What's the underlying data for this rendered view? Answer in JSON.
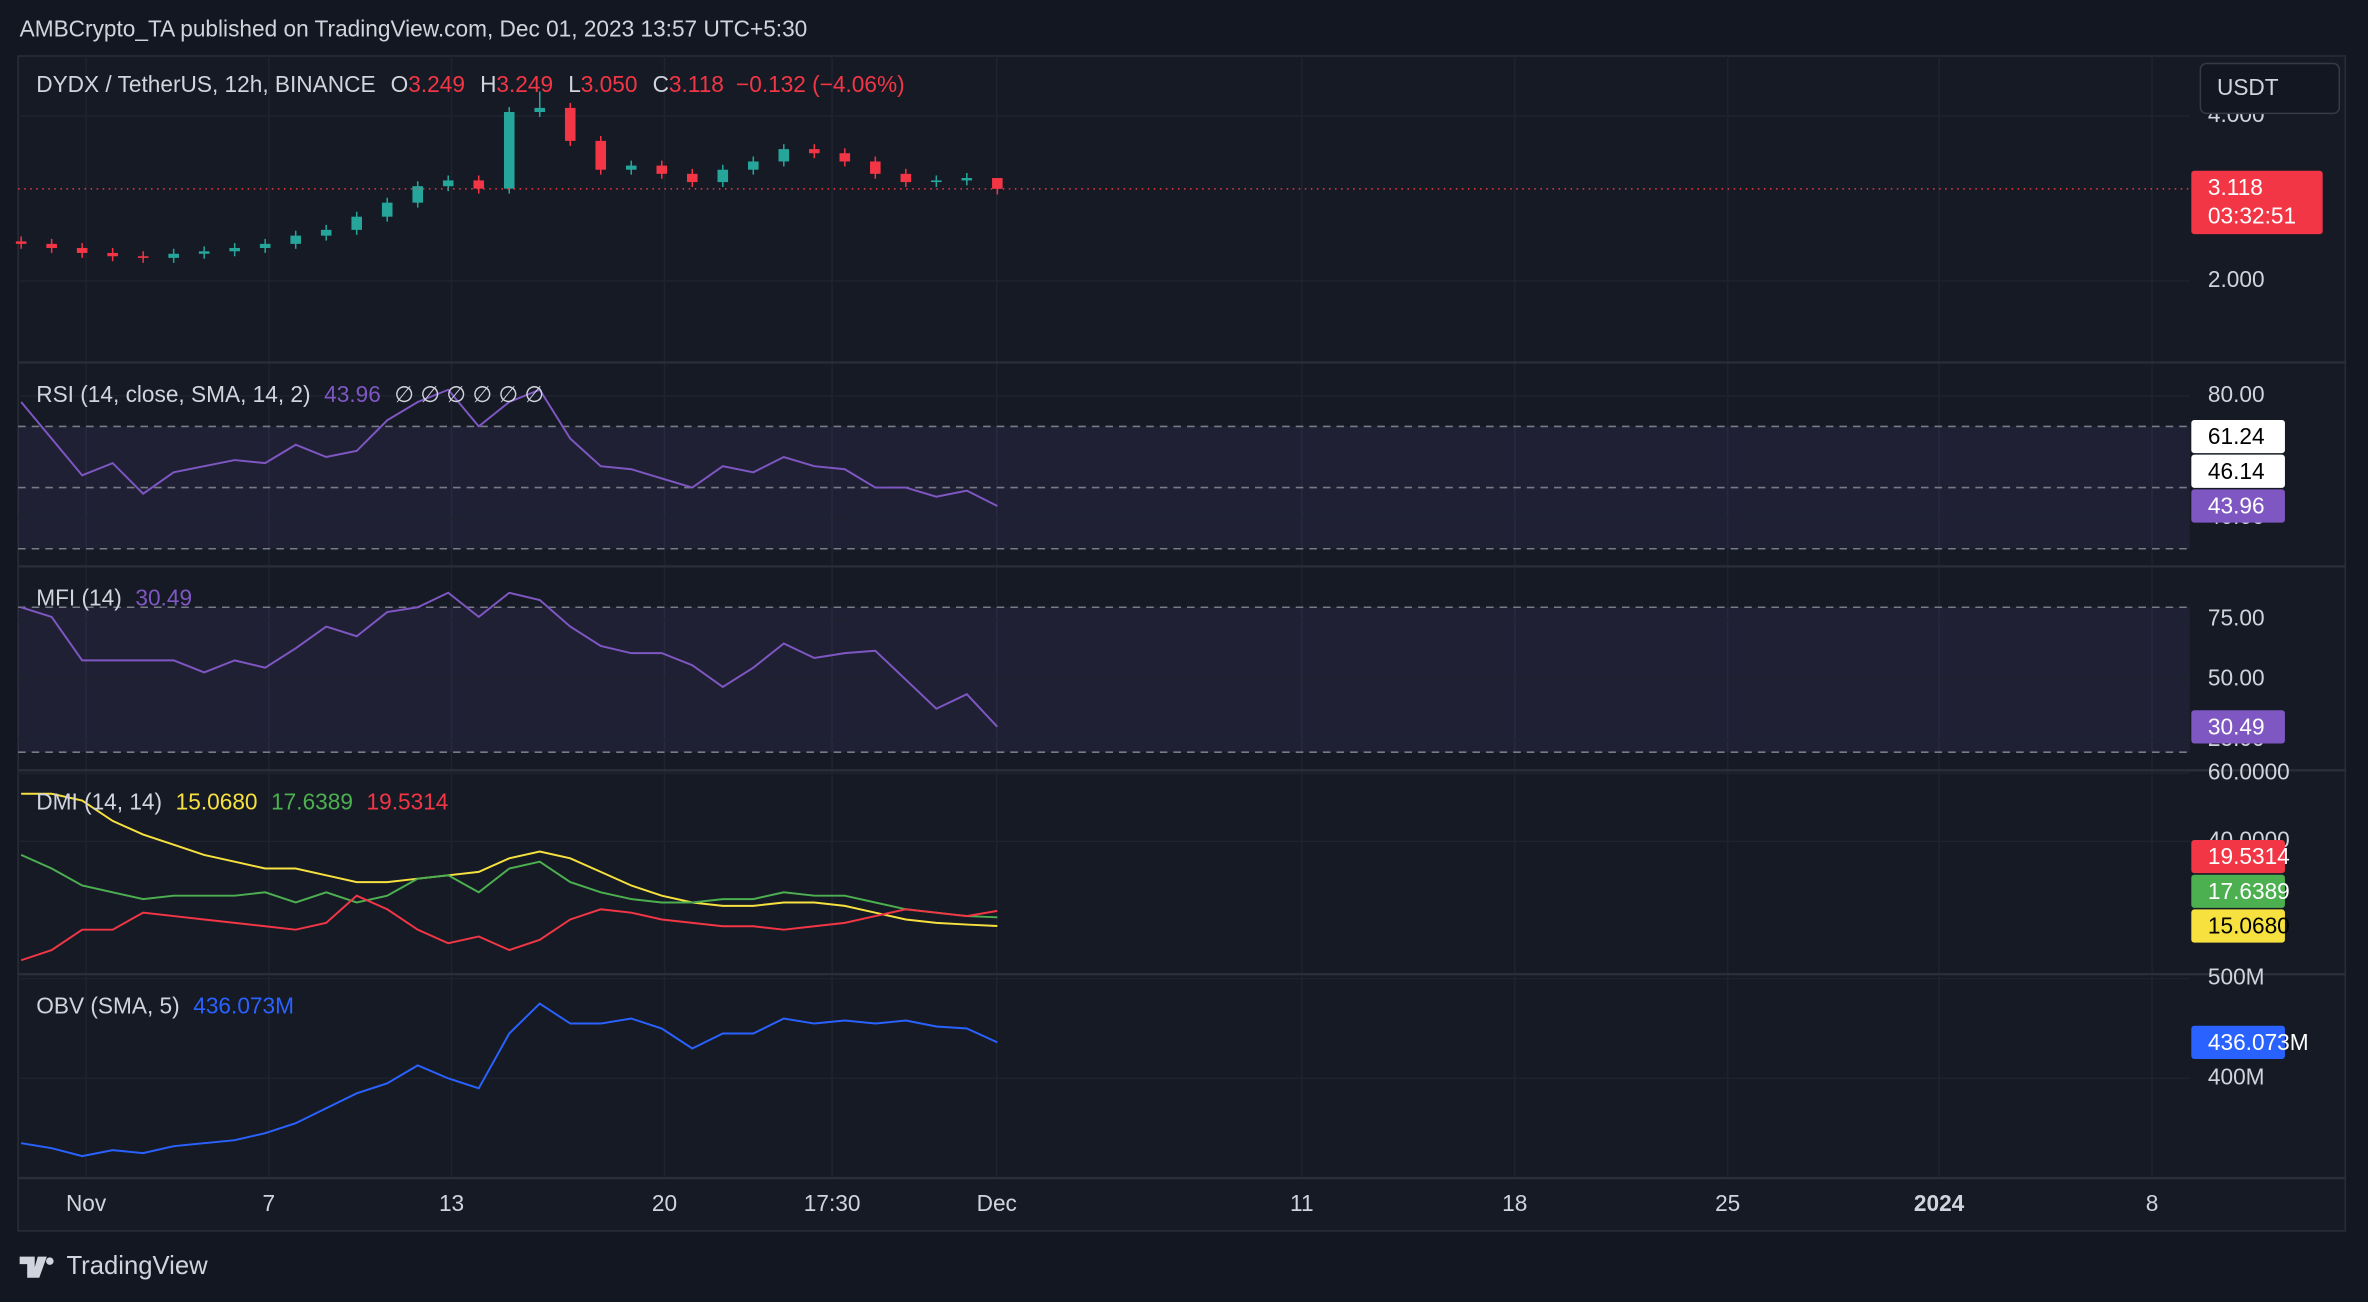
{
  "header": {
    "published": "AMBCrypto_TA published on TradingView.com, Dec 01, 2023 13:57 UTC+5:30"
  },
  "currency_button": "USDT",
  "time_axis": [
    "Nov",
    "7",
    "13",
    "20",
    "17:30",
    "Dec",
    "11",
    "18",
    "25",
    "2024",
    "8"
  ],
  "footer": "TradingView",
  "panes": [
    {
      "type": "candlestick",
      "legend": {
        "symbol": "DYDX / TetherUS, 12h, BINANCE",
        "open_label": "O",
        "open": "3.249",
        "high_label": "H",
        "high": "3.249",
        "low_label": "L",
        "low": "3.050",
        "close_label": "C",
        "close": "3.118",
        "change": "−0.132 (−4.06%)"
      },
      "open": [
        2.48,
        2.45,
        2.4,
        2.34,
        2.3,
        2.28,
        2.33,
        2.36,
        2.4,
        2.45,
        2.55,
        2.62,
        2.78,
        2.95,
        3.15,
        3.22,
        3.12,
        4.05,
        4.1,
        3.7,
        3.35,
        3.4,
        3.3,
        3.2,
        3.35,
        3.45,
        3.6,
        3.55,
        3.45,
        3.3,
        3.2,
        3.22,
        3.249
      ],
      "high": [
        2.54,
        2.51,
        2.46,
        2.4,
        2.36,
        2.39,
        2.42,
        2.46,
        2.51,
        2.61,
        2.68,
        2.84,
        3.01,
        3.21,
        3.28,
        3.28,
        4.11,
        4.3,
        4.16,
        3.76,
        3.46,
        3.46,
        3.36,
        3.41,
        3.51,
        3.66,
        3.66,
        3.61,
        3.51,
        3.36,
        3.28,
        3.31,
        3.249
      ],
      "low": [
        2.39,
        2.34,
        2.28,
        2.24,
        2.22,
        2.22,
        2.27,
        2.3,
        2.34,
        2.39,
        2.49,
        2.56,
        2.72,
        2.89,
        3.09,
        3.06,
        3.06,
        3.99,
        3.64,
        3.29,
        3.29,
        3.24,
        3.14,
        3.14,
        3.29,
        3.39,
        3.49,
        3.39,
        3.24,
        3.14,
        3.14,
        3.16,
        3.05
      ],
      "close": [
        2.45,
        2.4,
        2.34,
        2.3,
        2.28,
        2.33,
        2.36,
        2.4,
        2.45,
        2.55,
        2.62,
        2.78,
        2.95,
        3.15,
        3.22,
        3.12,
        4.05,
        4.1,
        3.7,
        3.35,
        3.4,
        3.3,
        3.2,
        3.35,
        3.45,
        3.6,
        3.55,
        3.45,
        3.3,
        3.2,
        3.22,
        3.249,
        3.118
      ],
      "up_color": "#26a69a",
      "down_color": "#f23645",
      "ylim": [
        1.01,
        4.73
      ],
      "yticks": [
        {
          "value": 4,
          "label": "4.000"
        },
        {
          "value": 2,
          "label": "2.000"
        }
      ],
      "last_price": {
        "value": 3.118,
        "countdown": "03:32:51"
      }
    },
    {
      "type": "line",
      "legend": {
        "name": "RSI (14, close, SMA, 14, 2)",
        "nulls": "∅ ∅ ∅ ∅ ∅ ∅"
      },
      "series": [
        {
          "color": "#7e57c2",
          "values": [
            78,
            66,
            54,
            58,
            48,
            55,
            57,
            59,
            58,
            64,
            60,
            62,
            72,
            78,
            82,
            70,
            78,
            82,
            66,
            57,
            56,
            53,
            50,
            57,
            55,
            60,
            57,
            56,
            50,
            50,
            47,
            49,
            43.96
          ]
        }
      ],
      "axis_values": [
        61.24,
        46.14
      ],
      "bands": [
        70,
        50,
        30
      ],
      "ylim": [
        24.2,
        90.9
      ],
      "yticks": [
        {
          "value": 80,
          "label": "80.00"
        },
        {
          "value": 40,
          "label": "40.00"
        }
      ]
    },
    {
      "type": "line",
      "legend": {
        "name": "MFI (14)"
      },
      "series": [
        {
          "color": "#7e57c2",
          "values": [
            80,
            76,
            58,
            58,
            58,
            58,
            53,
            58,
            55,
            63,
            72,
            68,
            78,
            80,
            86,
            76,
            86,
            83,
            72,
            64,
            61,
            61,
            56,
            47,
            55,
            65,
            59,
            61,
            62,
            50,
            38,
            44,
            30.49
          ]
        }
      ],
      "bands": [
        80,
        50,
        20
      ],
      "ylim": [
        12.5,
        96.9
      ],
      "yticks": [
        {
          "value": 75,
          "label": "75.00"
        },
        {
          "value": 50,
          "label": "50.00"
        },
        {
          "value": 25,
          "label": "25.00"
        }
      ]
    },
    {
      "type": "line",
      "legend": {
        "name": "DMI (14, 14)"
      },
      "series": [
        {
          "color": "#f7e13f",
          "last_label": "15.0680",
          "values": [
            54,
            54,
            52,
            46,
            42,
            39,
            36,
            34,
            32,
            32,
            30,
            28,
            28,
            29,
            30,
            31,
            35,
            37,
            35,
            31,
            27,
            24,
            22,
            21,
            21,
            22,
            22,
            21,
            19,
            17,
            16,
            15.5,
            15.068
          ]
        },
        {
          "color": "#4caf50",
          "last_label": "17.6389",
          "values": [
            36,
            32,
            27,
            25,
            23,
            24,
            24,
            24,
            25,
            22,
            25,
            22,
            24,
            29,
            30,
            25,
            32,
            34,
            28,
            25,
            23,
            22,
            22,
            23,
            23,
            25,
            24,
            24,
            22,
            20,
            19,
            18,
            17.6389
          ]
        },
        {
          "color": "#f23645",
          "last_label": "19.5314",
          "values": [
            5,
            8,
            14,
            14,
            19,
            18,
            17,
            16,
            15,
            14,
            16,
            24,
            20,
            14,
            10,
            12,
            8,
            11,
            17,
            20,
            19,
            17,
            16,
            15,
            15,
            14,
            15,
            16,
            18,
            20,
            19,
            18,
            19.5314
          ]
        }
      ],
      "ylim": [
        0.9,
        60.9
      ],
      "yticks": [
        {
          "value": 60,
          "label": "60.0000"
        },
        {
          "value": 40,
          "label": "40.0000"
        }
      ]
    },
    {
      "type": "line",
      "legend": {
        "name": "OBV (SMA, 5)"
      },
      "series": [
        {
          "color": "#2962ff",
          "last_label": "436.073M",
          "values": [
            335000000,
            330000000,
            322000000,
            328000000,
            325000000,
            332000000,
            335000000,
            338000000,
            345000000,
            355000000,
            370000000,
            385000000,
            395000000,
            413000000,
            400000000,
            390000000,
            445000000,
            475000000,
            455000000,
            455000000,
            460000000,
            450000000,
            430000000,
            445000000,
            445000000,
            460000000,
            455000000,
            458000000,
            455000000,
            458000000,
            452000000,
            450000000,
            436073000
          ]
        }
      ],
      "ylim": [
        300000000,
        504500000
      ],
      "yticks": [
        {
          "value": 500000000,
          "label": "500M"
        },
        {
          "value": 400000000,
          "label": "400M"
        }
      ]
    }
  ]
}
